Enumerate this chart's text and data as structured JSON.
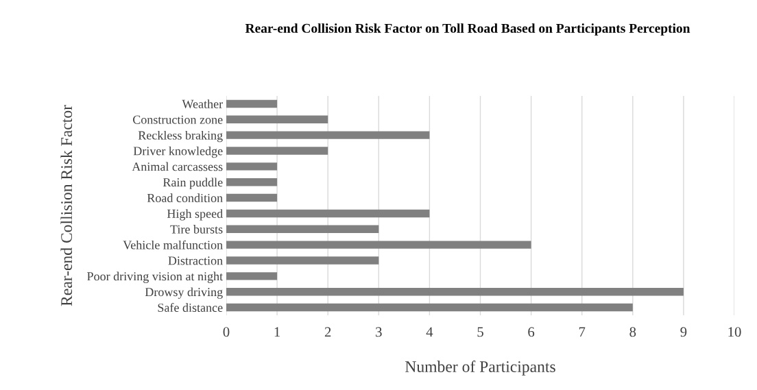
{
  "chart_data": {
    "type": "bar",
    "orientation": "horizontal",
    "title": "Rear-end Collision Risk Factor on Toll Road Based on Participants Perception",
    "xlabel": "Number of Participants",
    "ylabel": "Rear-end Collision Risk Factor",
    "categories": [
      "Weather",
      "Construction zone",
      "Reckless braking",
      "Driver knowledge",
      "Animal carcassess",
      "Rain puddle",
      "Road condition",
      "High speed",
      "Tire bursts",
      "Vehicle malfunction",
      "Distraction",
      "Poor driving vision at night",
      "Drowsy driving",
      "Safe distance"
    ],
    "values": [
      1,
      2,
      4,
      2,
      1,
      1,
      1,
      4,
      3,
      6,
      3,
      1,
      9,
      8
    ],
    "color": "#808080",
    "xlim": [
      0,
      10
    ],
    "xticks": [
      0,
      1,
      2,
      3,
      4,
      5,
      6,
      7,
      8,
      9,
      10
    ],
    "grid": "x"
  }
}
